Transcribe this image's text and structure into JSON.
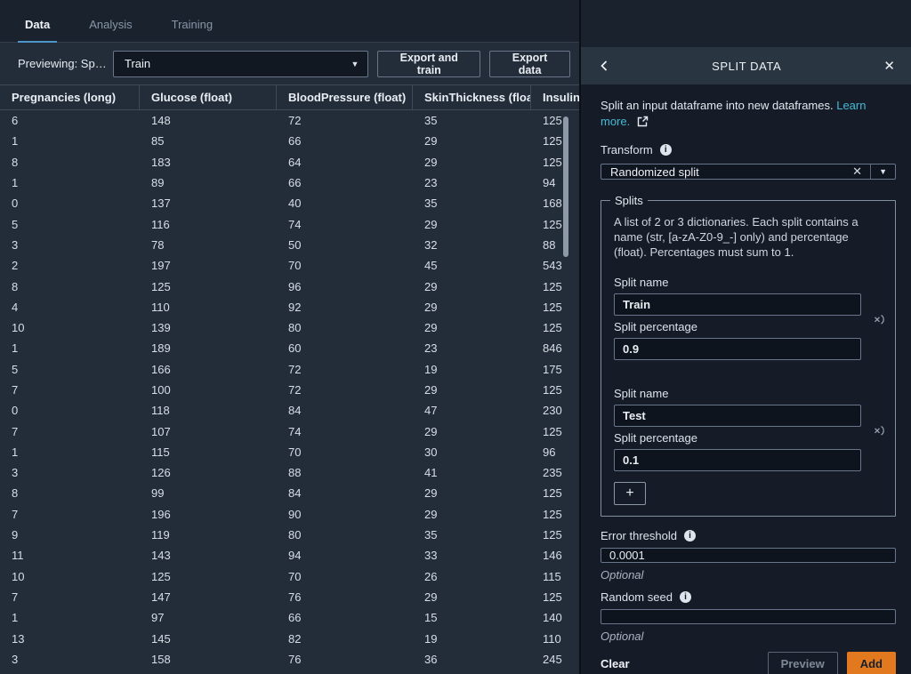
{
  "tabs": {
    "data": "Data",
    "analysis": "Analysis",
    "training": "Training"
  },
  "toolbar": {
    "previewing_label": "Previewing: Sp…",
    "preview_select_value": "Train",
    "export_train_button": "Export and train",
    "export_data_button": "Export data"
  },
  "table": {
    "columns": [
      "Pregnancies (long)",
      "Glucose (float)",
      "BloodPressure (float)",
      "SkinThickness (float)",
      "Insulin (float)"
    ],
    "rows": [
      [
        "6",
        "148",
        "72",
        "35",
        "125"
      ],
      [
        "1",
        "85",
        "66",
        "29",
        "125"
      ],
      [
        "8",
        "183",
        "64",
        "29",
        "125"
      ],
      [
        "1",
        "89",
        "66",
        "23",
        "94"
      ],
      [
        "0",
        "137",
        "40",
        "35",
        "168"
      ],
      [
        "5",
        "116",
        "74",
        "29",
        "125"
      ],
      [
        "3",
        "78",
        "50",
        "32",
        "88"
      ],
      [
        "2",
        "197",
        "70",
        "45",
        "543"
      ],
      [
        "8",
        "125",
        "96",
        "29",
        "125"
      ],
      [
        "4",
        "110",
        "92",
        "29",
        "125"
      ],
      [
        "10",
        "139",
        "80",
        "29",
        "125"
      ],
      [
        "1",
        "189",
        "60",
        "23",
        "846"
      ],
      [
        "5",
        "166",
        "72",
        "19",
        "175"
      ],
      [
        "7",
        "100",
        "72",
        "29",
        "125"
      ],
      [
        "0",
        "118",
        "84",
        "47",
        "230"
      ],
      [
        "7",
        "107",
        "74",
        "29",
        "125"
      ],
      [
        "1",
        "115",
        "70",
        "30",
        "96"
      ],
      [
        "3",
        "126",
        "88",
        "41",
        "235"
      ],
      [
        "8",
        "99",
        "84",
        "29",
        "125"
      ],
      [
        "7",
        "196",
        "90",
        "29",
        "125"
      ],
      [
        "9",
        "119",
        "80",
        "35",
        "125"
      ],
      [
        "11",
        "143",
        "94",
        "33",
        "146"
      ],
      [
        "10",
        "125",
        "70",
        "26",
        "115"
      ],
      [
        "7",
        "147",
        "76",
        "29",
        "125"
      ],
      [
        "1",
        "97",
        "66",
        "15",
        "140"
      ],
      [
        "13",
        "145",
        "82",
        "19",
        "110"
      ],
      [
        "3",
        "158",
        "76",
        "36",
        "245"
      ]
    ]
  },
  "panel": {
    "title": "SPLIT DATA",
    "intro_text": "Split an input dataframe into new dataframes.",
    "learn_more_link": "Learn more.",
    "transform": {
      "label": "Transform",
      "value": "Randomized split"
    },
    "splits": {
      "legend": "Splits",
      "description": "A list of 2 or 3 dictionaries. Each split contains a name (str, [a-zA-Z0-9_-] only) and percentage (float). Percentages must sum to 1.",
      "name_label": "Split name",
      "percentage_label": "Split percentage",
      "groups": [
        {
          "name": "Train",
          "percentage": "0.9"
        },
        {
          "name": "Test",
          "percentage": "0.1"
        }
      ]
    },
    "error_threshold": {
      "label": "Error threshold",
      "value": "0.0001",
      "hint": "Optional"
    },
    "random_seed": {
      "label": "Random seed",
      "value": "",
      "hint": "Optional"
    },
    "footer": {
      "clear_button": "Clear",
      "preview_button": "Preview",
      "add_button": "Add"
    }
  },
  "icons": {
    "close": "✕",
    "caret": "▼",
    "plus": "+",
    "info": "i"
  },
  "colors": {
    "accent_tab_underline": "#4d94c9",
    "link": "#44b9d6",
    "primary_button": "#e2791f",
    "panel_header": "#2a3542",
    "background_left": "#232d3a",
    "background_panel": "#161c27"
  }
}
